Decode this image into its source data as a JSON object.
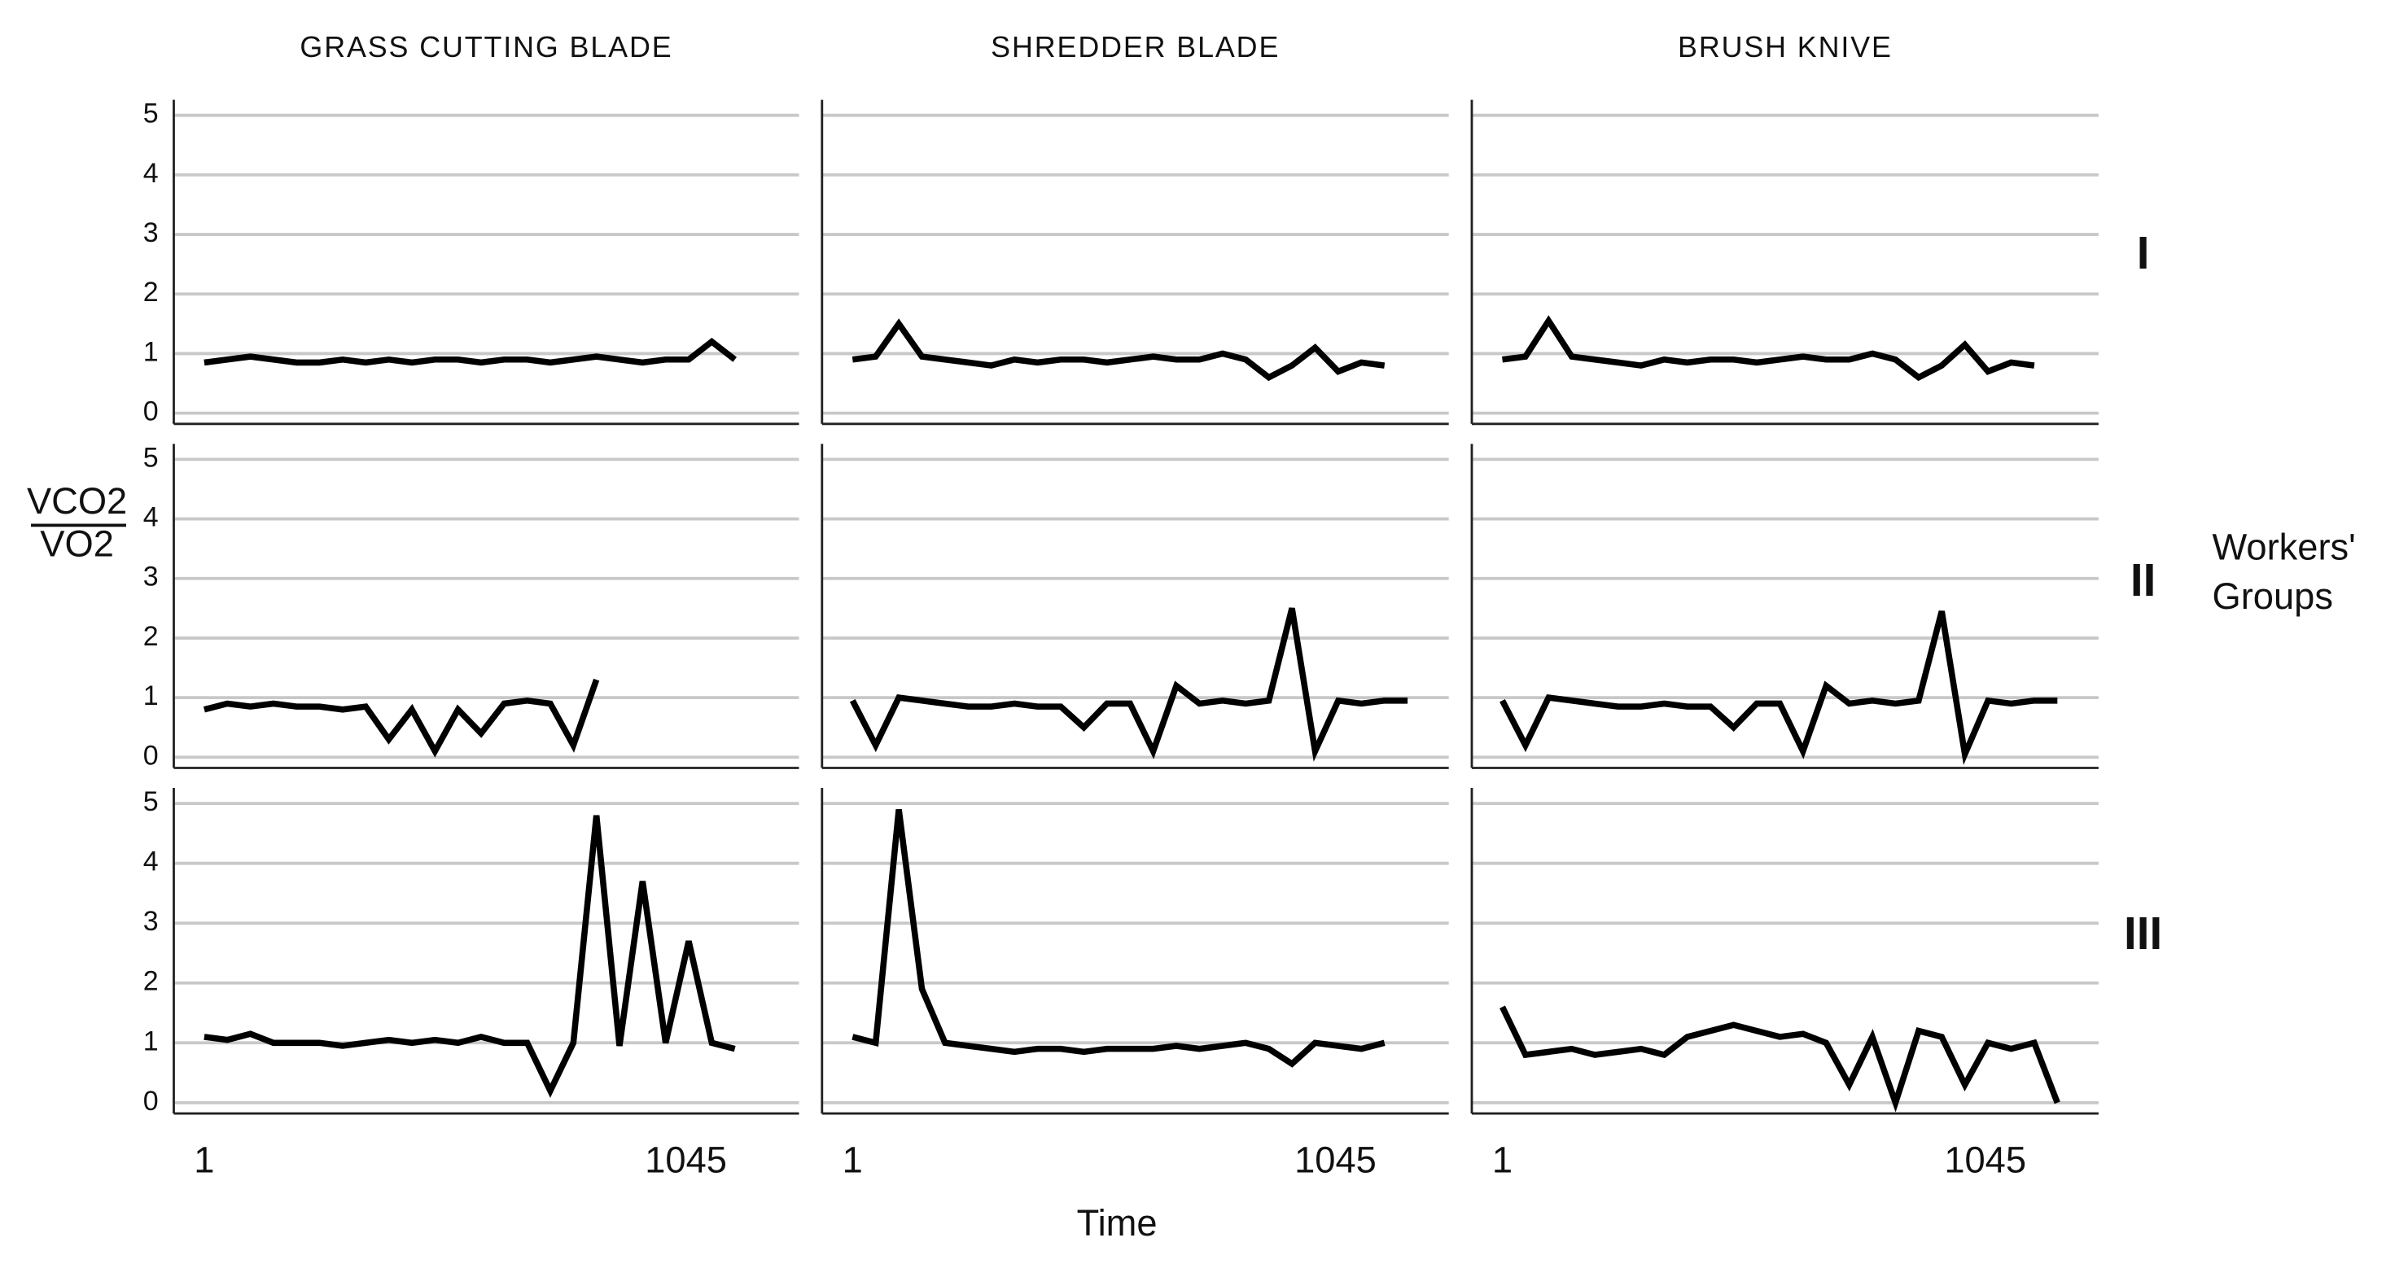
{
  "chart_data": {
    "type": "line",
    "columns": [
      "GRASS CUTTING BLADE",
      "SHREDDER BLADE",
      "BRUSH KNIVE"
    ],
    "rows": [
      "I",
      "II",
      "III"
    ],
    "ylabel_numerator": "VCO2",
    "ylabel_denominator": "VO2",
    "xlabel": "Time",
    "legend_title": "Workers' Groups",
    "x": [
      1,
      51,
      101,
      151,
      201,
      251,
      301,
      351,
      401,
      451,
      501,
      551,
      601,
      651,
      701,
      751,
      801,
      851,
      901,
      951,
      1001,
      1051,
      1101,
      1151,
      1201,
      1251
    ],
    "xlim": [
      -65,
      1290
    ],
    "xticks": [
      1,
      1045
    ],
    "ylim": [
      -0.18,
      5.26
    ],
    "yticks": [
      0,
      1,
      2,
      3,
      4,
      5
    ],
    "grid": true,
    "color": "#000000",
    "panels": [
      {
        "row": 0,
        "column": 0,
        "values": [
          0.85,
          0.9,
          0.95,
          0.9,
          0.85,
          0.85,
          0.9,
          0.85,
          0.9,
          0.85,
          0.9,
          0.9,
          0.85,
          0.9,
          0.9,
          0.85,
          0.9,
          0.95,
          0.9,
          0.85,
          0.9,
          0.9,
          1.2,
          0.9,
          null,
          null
        ]
      },
      {
        "row": 0,
        "column": 1,
        "values": [
          0.9,
          0.95,
          1.5,
          0.95,
          0.9,
          0.85,
          0.8,
          0.9,
          0.85,
          0.9,
          0.9,
          0.85,
          0.9,
          0.95,
          0.9,
          0.9,
          1.0,
          0.9,
          0.6,
          0.8,
          1.1,
          0.7,
          0.85,
          0.8,
          null,
          null
        ]
      },
      {
        "row": 0,
        "column": 2,
        "values": [
          0.9,
          0.95,
          1.55,
          0.95,
          0.9,
          0.85,
          0.8,
          0.9,
          0.85,
          0.9,
          0.9,
          0.85,
          0.9,
          0.95,
          0.9,
          0.9,
          1.0,
          0.9,
          0.6,
          0.8,
          1.15,
          0.7,
          0.85,
          0.8,
          null,
          null
        ]
      },
      {
        "row": 1,
        "column": 0,
        "values": [
          0.8,
          0.9,
          0.85,
          0.9,
          0.85,
          0.85,
          0.8,
          0.85,
          0.3,
          0.8,
          0.1,
          0.8,
          0.4,
          0.9,
          0.95,
          0.9,
          0.2,
          1.3,
          null,
          null,
          null,
          null,
          null,
          null,
          null,
          null
        ]
      },
      {
        "row": 1,
        "column": 1,
        "values": [
          0.95,
          0.2,
          1.0,
          0.95,
          0.9,
          0.85,
          0.85,
          0.9,
          0.85,
          0.85,
          0.5,
          0.9,
          0.9,
          0.1,
          1.2,
          0.9,
          0.95,
          0.9,
          0.95,
          2.5,
          0.1,
          0.95,
          0.9,
          0.95,
          0.95,
          null
        ]
      },
      {
        "row": 1,
        "column": 2,
        "values": [
          0.95,
          0.2,
          1.0,
          0.95,
          0.9,
          0.85,
          0.85,
          0.9,
          0.85,
          0.85,
          0.5,
          0.9,
          0.9,
          0.1,
          1.2,
          0.9,
          0.95,
          0.9,
          0.95,
          2.45,
          0.05,
          0.95,
          0.9,
          0.95,
          0.95,
          null
        ]
      },
      {
        "row": 2,
        "column": 0,
        "values": [
          1.1,
          1.05,
          1.15,
          1.0,
          1.0,
          1.0,
          0.95,
          1.0,
          1.05,
          1.0,
          1.05,
          1.0,
          1.1,
          1.0,
          1.0,
          0.2,
          1.0,
          4.8,
          0.95,
          3.7,
          1.0,
          2.7,
          1.0,
          0.9,
          null,
          null
        ]
      },
      {
        "row": 2,
        "column": 1,
        "values": [
          1.1,
          1.0,
          4.9,
          1.9,
          1.0,
          0.95,
          0.9,
          0.85,
          0.9,
          0.9,
          0.85,
          0.9,
          0.9,
          0.9,
          0.95,
          0.9,
          0.95,
          1.0,
          0.9,
          0.65,
          1.0,
          0.95,
          0.9,
          1.0,
          null,
          null
        ]
      },
      {
        "row": 2,
        "column": 2,
        "values": [
          1.6,
          0.8,
          0.85,
          0.9,
          0.8,
          0.85,
          0.9,
          0.8,
          1.1,
          1.2,
          1.3,
          1.2,
          1.1,
          1.15,
          1.0,
          0.3,
          1.1,
          0.0,
          1.2,
          1.1,
          0.3,
          1.0,
          0.9,
          1.0,
          0.0,
          null
        ]
      }
    ]
  }
}
